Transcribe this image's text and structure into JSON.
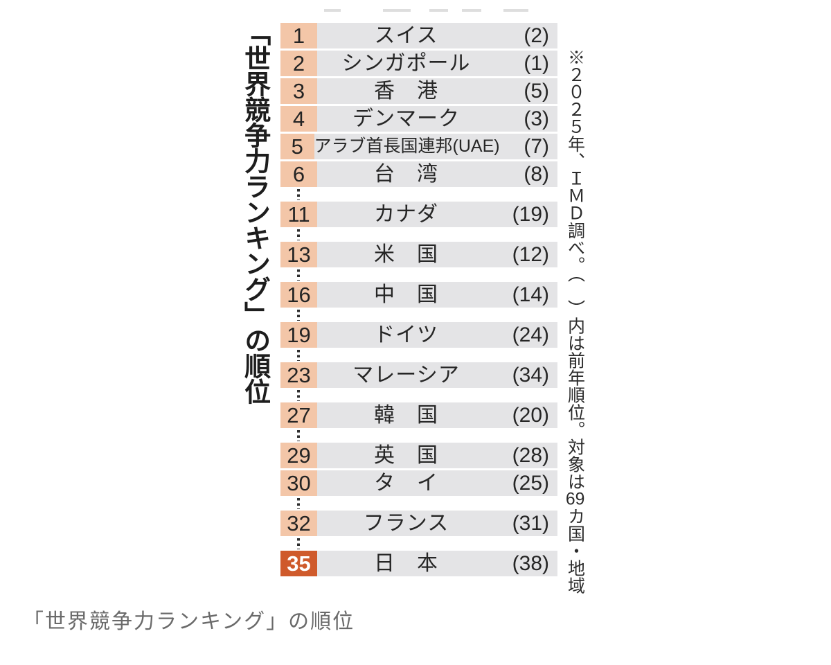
{
  "chart_data": {
    "type": "table",
    "title": "「世界競争力ランキング」の順位",
    "source_note": "※2025年、IMD調べ。（　）内は前年順位。対象は69カ国・地域",
    "note_segments": [
      "※２０２５年、ＩＭＤ調べ。（　）内は前年順位。対象は",
      {
        "combine": "69"
      },
      "カ国・地域"
    ],
    "rows": [
      {
        "rank": "1",
        "name": "スイス",
        "prev": "(2)"
      },
      {
        "rank": "2",
        "name": "シンガポール",
        "prev": "(1)"
      },
      {
        "rank": "3",
        "name": "香　港",
        "prev": "(5)"
      },
      {
        "rank": "4",
        "name": "デンマーク",
        "prev": "(3)"
      },
      {
        "rank": "5",
        "name": "アラブ首長国連邦(UAE)",
        "prev": "(7)",
        "small": true
      },
      {
        "rank": "6",
        "name": "台　湾",
        "prev": "(8)"
      },
      {
        "rank": "11",
        "name": "カナダ",
        "prev": "(19)",
        "dots_before": true
      },
      {
        "rank": "13",
        "name": "米　国",
        "prev": "(12)",
        "dots_before": true
      },
      {
        "rank": "16",
        "name": "中　国",
        "prev": "(14)",
        "dots_before": true
      },
      {
        "rank": "19",
        "name": "ドイツ",
        "prev": "(24)",
        "dots_before": true
      },
      {
        "rank": "23",
        "name": "マレーシア",
        "prev": "(34)",
        "dots_before": true
      },
      {
        "rank": "27",
        "name": "韓　国",
        "prev": "(20)",
        "dots_before": true
      },
      {
        "rank": "29",
        "name": "英　国",
        "prev": "(28)",
        "dots_before": true
      },
      {
        "rank": "30",
        "name": "タ　イ",
        "prev": "(25)"
      },
      {
        "rank": "32",
        "name": "フランス",
        "prev": "(31)",
        "dots_before": true
      },
      {
        "rank": "35",
        "name": "日　本",
        "prev": "(38)",
        "dots_before": true,
        "highlight": true
      }
    ]
  },
  "caption": "「世界競争力ランキング」の順位",
  "colors": {
    "rank_bg": "#f3c6a8",
    "highlight_bg": "#cf5a2b",
    "row_bg": "#e4e4e6",
    "text": "#262626",
    "caption_text": "#6a6a6a"
  }
}
